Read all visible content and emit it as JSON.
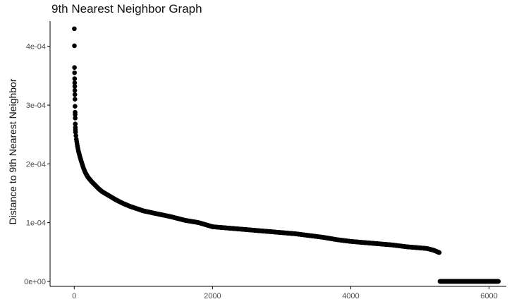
{
  "chart_data": {
    "type": "scatter",
    "title": "9th Nearest Neighbor Graph",
    "xlabel": "",
    "ylabel": "Distance to 9th Nearest Neighbor",
    "xlim": [
      -350,
      6250
    ],
    "ylim": [
      -8.5e-06,
      0.0004429
    ],
    "grid": false,
    "x_ticks": [
      0,
      2000,
      4000,
      6000
    ],
    "x_tick_labels": [
      "0",
      "2000",
      "4000",
      "6000"
    ],
    "y_ticks": [
      0,
      0.0001,
      0.0002,
      0.0003,
      0.0004
    ],
    "y_tick_labels": [
      "0e+00",
      "1e-04",
      "2e-04",
      "3e-04",
      "4e-04"
    ],
    "outliers": [
      [
        1,
        0.00043
      ],
      [
        2,
        0.000401
      ],
      [
        3,
        0.000364
      ],
      [
        4,
        0.000355
      ],
      [
        5,
        0.000345
      ],
      [
        6,
        0.000338
      ],
      [
        7,
        0.000332
      ],
      [
        8,
        0.000325
      ],
      [
        9,
        0.000318
      ],
      [
        10,
        0.00031
      ],
      [
        11,
        0.000298
      ],
      [
        12,
        0.000288
      ],
      [
        13,
        0.000284
      ],
      [
        14,
        0.000278
      ],
      [
        15,
        0.000268
      ],
      [
        16,
        0.000262
      ],
      [
        17,
        0.000258
      ],
      [
        18,
        0.000254
      ]
    ],
    "curve_knots": [
      [
        18,
        0.000254
      ],
      [
        30,
        0.000242
      ],
      [
        45,
        0.000231
      ],
      [
        60,
        0.000222
      ],
      [
        80,
        0.000213
      ],
      [
        100,
        0.000205
      ],
      [
        130,
        0.000194
      ],
      [
        160,
        0.000185
      ],
      [
        200,
        0.000177
      ],
      [
        250,
        0.00017
      ],
      [
        300,
        0.000164
      ],
      [
        350,
        0.000158
      ],
      [
        400,
        0.000153
      ],
      [
        500,
        0.000146
      ],
      [
        600,
        0.000139
      ],
      [
        700,
        0.000133
      ],
      [
        800,
        0.000128
      ],
      [
        900,
        0.000124
      ],
      [
        1000,
        0.00012
      ],
      [
        1200,
        0.000115
      ],
      [
        1400,
        0.00011
      ],
      [
        1600,
        0.000104
      ],
      [
        1800,
        0.0001
      ],
      [
        2000,
        9.3e-05
      ],
      [
        2200,
        9.1e-05
      ],
      [
        2400,
        8.9e-05
      ],
      [
        2600,
        8.7e-05
      ],
      [
        2800,
        8.5e-05
      ],
      [
        3000,
        8.3e-05
      ],
      [
        3200,
        8.1e-05
      ],
      [
        3400,
        7.8e-05
      ],
      [
        3600,
        7.5e-05
      ],
      [
        3800,
        7.1e-05
      ],
      [
        4000,
        6.8e-05
      ],
      [
        4200,
        6.6e-05
      ],
      [
        4400,
        6.4e-05
      ],
      [
        4600,
        6.2e-05
      ],
      [
        4800,
        5.9e-05
      ],
      [
        5000,
        5.7e-05
      ],
      [
        5100,
        5.6e-05
      ],
      [
        5200,
        5.3e-05
      ],
      [
        5280,
        4.9e-05
      ]
    ],
    "zero_segment": {
      "x_start": 5290,
      "x_end": 6140,
      "y": 0
    },
    "point_color": "#000000"
  }
}
